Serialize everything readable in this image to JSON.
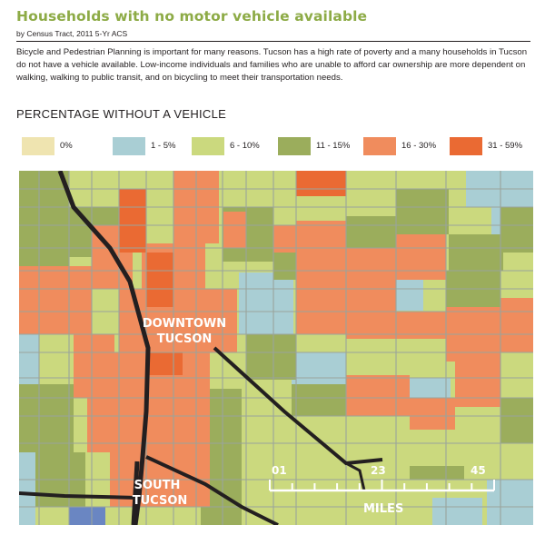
{
  "header": {
    "title": "Households with no motor vehicle available",
    "subtitle": "by Census Tract, 2011 5-Yr ACS",
    "intro": "Bicycle and Pedestrian Planning is important for many reasons. Tucson has a high rate of poverty and a many households in Tucson do not have a vehicle available. Low-income individuals and families who are unable to afford car ownership are more dependent on walking, walking to public transit, and on bicycling to meet their transportation needs."
  },
  "legend": {
    "title": "PERCENTAGE WITHOUT A VEHICLE",
    "items": [
      {
        "label": "0%",
        "color": "#efe4b0"
      },
      {
        "label": "1 - 5%",
        "color": "#a9ced4"
      },
      {
        "label": "6 - 10%",
        "color": "#cbd97e"
      },
      {
        "label": "11 - 15%",
        "color": "#9bad5c"
      },
      {
        "label": "16 - 30%",
        "color": "#f08c5d"
      },
      {
        "label": "31 - 59%",
        "color": "#ea6a33"
      }
    ]
  },
  "map": {
    "labels": {
      "downtown_line1": "DOWNTOWN",
      "downtown_line2": "TUCSON",
      "south_line1": "SOUTH",
      "south_line2": "TUCSON"
    },
    "scale": {
      "ticks": [
        "01",
        "23",
        "45"
      ],
      "unit": "MILES"
    },
    "colors": {
      "road": "#231f20",
      "street": "#9aa49c"
    }
  }
}
